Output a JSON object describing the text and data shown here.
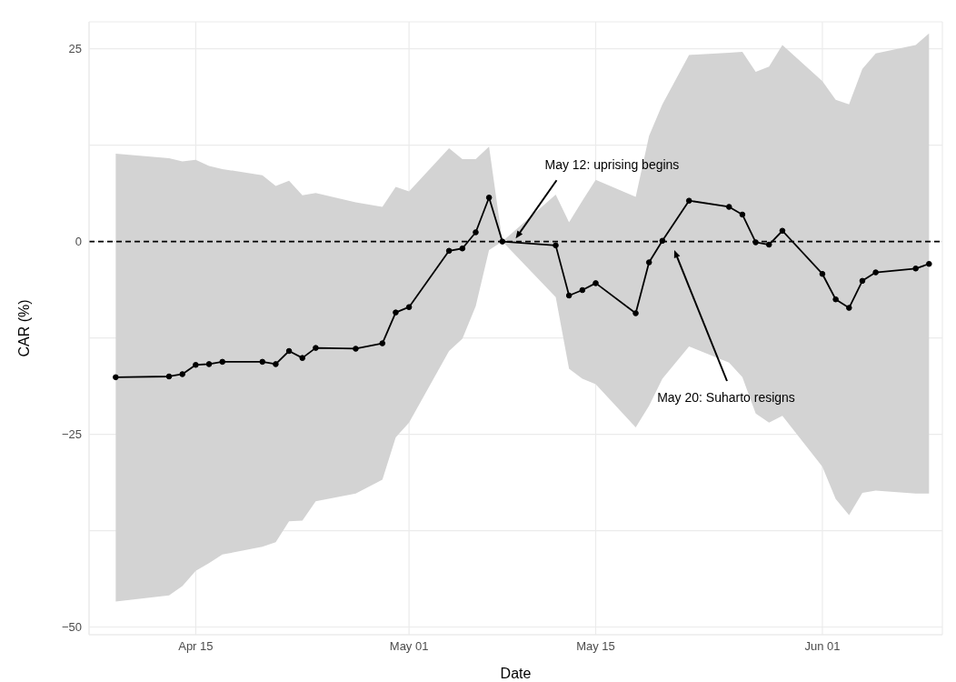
{
  "chart_data": {
    "type": "line",
    "xlabel": "Date",
    "ylabel": "CAR (%)",
    "x": [
      "--04-09",
      "--04-13",
      "--04-14",
      "--04-15",
      "--04-16",
      "--04-17",
      "--04-20",
      "--04-21",
      "--04-22",
      "--04-23",
      "--04-24",
      "--04-27",
      "--04-29",
      "--04-30",
      "--05-01",
      "--05-04",
      "--05-05",
      "--05-06",
      "--05-07",
      "--05-08",
      "--05-12",
      "--05-13",
      "--05-14",
      "--05-15",
      "--05-18",
      "--05-19",
      "--05-20",
      "--05-22",
      "--05-25",
      "--05-26",
      "--05-27",
      "--05-28",
      "--05-29",
      "--06-01",
      "--06-02",
      "--06-03",
      "--06-04",
      "--06-05",
      "--06-08",
      "--06-09"
    ],
    "series": [
      {
        "color": "#000000",
        "values": [
          -17.6,
          -17.5,
          -17.2,
          -16.0,
          -15.9,
          -15.6,
          -15.6,
          -15.9,
          -14.2,
          -15.1,
          -13.8,
          -13.9,
          -13.2,
          -9.2,
          -8.5,
          -1.2,
          -0.9,
          1.2,
          5.7,
          0,
          -0.5,
          -7.0,
          -6.3,
          -5.4,
          -9.3,
          -2.7,
          0.1,
          5.3,
          4.5,
          3.5,
          -0.1,
          -0.4,
          1.4,
          -4.2,
          -7.5,
          -8.6,
          -5.1,
          -4.0,
          -3.5,
          -2.9
        ],
        "lower": [
          -46.7,
          -45.9,
          -44.7,
          -42.7,
          -41.7,
          -40.6,
          -39.6,
          -39.0,
          -36.3,
          -36.2,
          -33.7,
          -32.7,
          -30.9,
          -25.4,
          -23.5,
          -14.2,
          -12.6,
          -8.4,
          -1.1,
          0,
          -7.2,
          -16.5,
          -17.8,
          -18.5,
          -24.1,
          -21.3,
          -17.8,
          -13.6,
          -15.7,
          -17.6,
          -22.3,
          -23.5,
          -22.6,
          -29.2,
          -33.4,
          -35.5,
          -32.6,
          -32.3,
          -32.7,
          -32.7
        ],
        "upper": [
          11.4,
          10.8,
          10.4,
          10.6,
          9.8,
          9.4,
          8.6,
          7.2,
          7.9,
          6.0,
          6.3,
          5.1,
          4.5,
          7.1,
          6.5,
          12.1,
          10.7,
          10.7,
          12.3,
          0,
          6.1,
          2.5,
          5.3,
          8.0,
          5.8,
          13.7,
          17.8,
          24.2,
          24.5,
          24.6,
          22.0,
          22.7,
          25.5,
          20.8,
          18.4,
          17.8,
          22.4,
          24.4,
          25.5,
          27.0
        ]
      }
    ],
    "xlim": [
      "--04-07",
      "--06-10"
    ],
    "xticks": [
      {
        "value": "--04-15",
        "label": "Apr 15"
      },
      {
        "value": "--05-01",
        "label": "May 01"
      },
      {
        "value": "--05-15",
        "label": "May 15"
      },
      {
        "value": "--06-01",
        "label": "Jun 01"
      }
    ],
    "ylim": [
      -51,
      28.5
    ],
    "yticks": [
      -50,
      {
        "value": -37.5,
        "label": null
      },
      -25,
      {
        "value": -12.5,
        "label": null
      },
      0,
      {
        "value": 12.5,
        "label": null
      },
      25
    ],
    "ref_lines": [
      {
        "axis": "y",
        "value": 0,
        "color": "#000000",
        "line_style": "dashed"
      }
    ],
    "annotations": [
      {
        "text": "May 12: uprising begins",
        "x": "--05-09",
        "y": 0.4
      },
      "May 20: Suharto resigns"
    ],
    "grid": true,
    "marker": "circle",
    "line_style": "solid"
  }
}
